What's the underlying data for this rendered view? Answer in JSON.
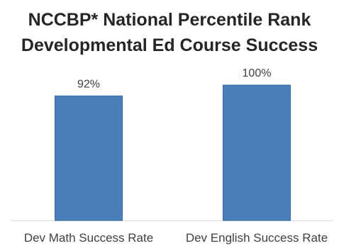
{
  "chart_data": {
    "type": "bar",
    "title_lines": [
      "NCCBP* National Percentile Rank",
      "Developmental Ed Course Success"
    ],
    "categories": [
      "Dev Math Success Rate",
      "Dev English Success Rate"
    ],
    "values": [
      92,
      100
    ],
    "data_labels": [
      "92%",
      "100%"
    ],
    "ylim": [
      0,
      100
    ],
    "bar_color": "#4a7ebb",
    "grid": false,
    "legend": "none"
  }
}
